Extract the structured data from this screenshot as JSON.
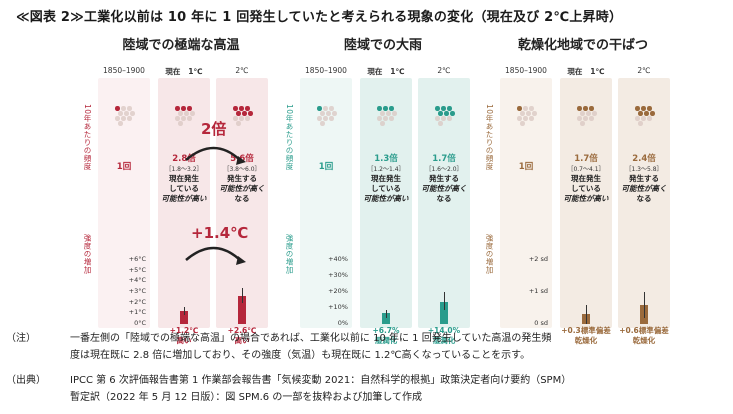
{
  "title": "≪図表 2≫工業化以前は 10 年に 1 回発生していたと考えられる現象の変化（現在及び 2℃上昇時）",
  "columns": {
    "pre": "1850–1900",
    "now_a": "現在",
    "now_b": "1℃",
    "two": "2℃"
  },
  "side_labels": {
    "freq": "10年あたりの頻度",
    "intensity": "強度の増加"
  },
  "panels": [
    {
      "title": "陸域での極端な高温",
      "color": "#b5273b",
      "bg": "#f7e7e8",
      "bg_light": "#fbf1f2",
      "ticks": [
        "+6°C",
        "+5°C",
        "+4°C",
        "+3°C",
        "+2°C",
        "+1°C",
        "0°C"
      ],
      "freq": [
        {
          "value": "1回",
          "range": ""
        },
        {
          "value": "2.8倍",
          "range": "［1.8～3.2］"
        },
        {
          "value": "5.6倍",
          "range": "［3.8～6.0］"
        }
      ],
      "desc_now": [
        "現在発生",
        "している",
        "可能性が高い"
      ],
      "desc_two": [
        "発生する",
        "可能性が高く",
        "なる"
      ],
      "intensity_now": [
        "+1.2℃",
        "高い"
      ],
      "intensity_two": [
        "+2.6℃",
        "高い"
      ],
      "badge_freq": "2倍",
      "badge_int": "+1.4℃"
    },
    {
      "title": "陸域での大雨",
      "color": "#2a9c8c",
      "bg": "#e2f1ee",
      "bg_light": "#eef7f5",
      "ticks": [
        "+40%",
        "+30%",
        "+20%",
        "+10%",
        "0%"
      ],
      "freq": [
        {
          "value": "1回",
          "range": ""
        },
        {
          "value": "1.3倍",
          "range": "［1.2～1.4］"
        },
        {
          "value": "1.7倍",
          "range": "［1.6～2.0］"
        }
      ],
      "desc_now": [
        "現在発生",
        "している",
        "可能性が高い"
      ],
      "desc_two": [
        "発生する",
        "可能性が高く",
        "なる"
      ],
      "intensity_now": [
        "+6.7%",
        "湿潤化"
      ],
      "intensity_two": [
        "+14.0%",
        "湿潤化"
      ]
    },
    {
      "title": "乾燥化地域での干ばつ",
      "color": "#9a6a3c",
      "bg": "#f3ebe3",
      "bg_light": "#f8f2ec",
      "ticks": [
        "+2 sd",
        "+1 sd",
        "0 sd"
      ],
      "freq": [
        {
          "value": "1回",
          "range": ""
        },
        {
          "value": "1.7倍",
          "range": "［0.7～4.1］"
        },
        {
          "value": "2.4倍",
          "range": "［1.3～5.8］"
        }
      ],
      "desc_now": [
        "現在発生",
        "している",
        "可能性が高い"
      ],
      "desc_two": [
        "発生する",
        "可能性が高く",
        "なる"
      ],
      "intensity_now": [
        "+0.3標準偏差",
        "乾燥化"
      ],
      "intensity_two": [
        "+0.6標準偏差",
        "乾燥化"
      ]
    }
  ],
  "chart_data": {
    "type": "bar",
    "categories": [
      "1850–1900",
      "現在 1℃",
      "2℃"
    ],
    "panels": [
      {
        "title": "陸域での極端な高温",
        "frequency_multiplier": [
          1,
          2.8,
          5.6
        ],
        "frequency_range": [
          null,
          [
            1.8,
            3.2
          ],
          [
            3.8,
            6.0
          ]
        ],
        "intensity_values": [
          0,
          1.2,
          2.6
        ],
        "intensity_unit": "°C",
        "intensity_error": [
          null,
          [
            0.8,
            1.6
          ],
          [
            2.0,
            3.4
          ]
        ],
        "ylim": [
          0,
          6
        ]
      },
      {
        "title": "陸域での大雨",
        "frequency_multiplier": [
          1,
          1.3,
          1.7
        ],
        "frequency_range": [
          null,
          [
            1.2,
            1.4
          ],
          [
            1.6,
            2.0
          ]
        ],
        "intensity_values": [
          0,
          6.7,
          14.0
        ],
        "intensity_unit": "%",
        "intensity_error": [
          null,
          [
            4,
            9
          ],
          [
            9,
            20
          ]
        ],
        "ylim": [
          0,
          40
        ]
      },
      {
        "title": "乾燥化地域での干ばつ",
        "frequency_multiplier": [
          1,
          1.7,
          2.4
        ],
        "frequency_range": [
          null,
          [
            0.7,
            4.1
          ],
          [
            1.3,
            5.8
          ]
        ],
        "intensity_values": [
          0,
          0.3,
          0.6
        ],
        "intensity_unit": "sd",
        "intensity_error": [
          null,
          [
            0.0,
            0.6
          ],
          [
            0.2,
            1.0
          ]
        ],
        "ylim": [
          0,
          2
        ]
      }
    ]
  },
  "notes": {
    "n1_label": "（注）",
    "n1_line1": "一番左側の「陸域での極端な高温」の場合であれば、工業化以前に 10 年に 1 回発生していた高温の発生頻",
    "n1_line2": "度は現在既に 2.8 倍に増加しており、その強度（気温）も現在既に 1.2℃高くなっていることを示す。",
    "n2_label": "（出典）",
    "n2_line1": "IPCC 第 6 次評価報告書第 1 作業部会報告書「気候変動 2021：自然科学的根拠」政策決定者向け要約（SPM）",
    "n2_line2": "暫定訳（2022 年 5 月 12 日版）：図 SPM.6 の一部を抜粋および加筆して作成"
  }
}
